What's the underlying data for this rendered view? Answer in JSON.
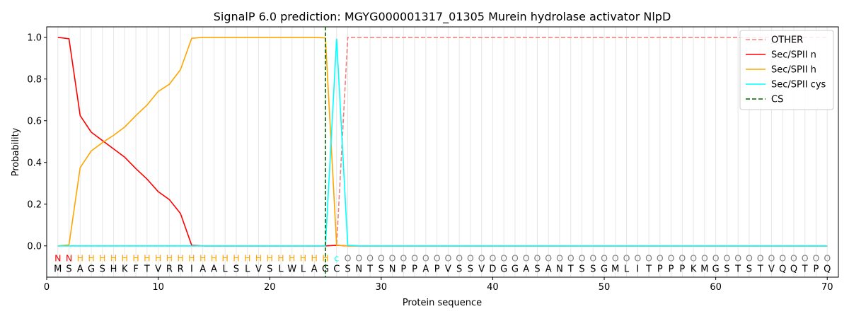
{
  "chart_data": {
    "type": "line",
    "title": "SignalP 6.0 prediction: MGYG000001317_01305 Murein hydrolase activator NlpD",
    "xlabel": "Protein sequence",
    "ylabel": "Probability",
    "xlim": [
      0,
      71
    ],
    "ylim": [
      -0.15,
      1.05
    ],
    "xticks": [
      0,
      10,
      20,
      30,
      40,
      50,
      60,
      70
    ],
    "yticks": [
      0.0,
      0.2,
      0.4,
      0.6,
      0.8,
      1.0
    ],
    "legend_position": "top-right",
    "sequence": [
      "M",
      "S",
      "A",
      "G",
      "S",
      "H",
      "K",
      "F",
      "T",
      "V",
      "R",
      "R",
      "I",
      "A",
      "A",
      "L",
      "S",
      "L",
      "V",
      "S",
      "L",
      "W",
      "L",
      "A",
      "G",
      "C",
      "S",
      "N",
      "T",
      "S",
      "N",
      "P",
      "P",
      "A",
      "P",
      "V",
      "S",
      "S",
      "V",
      "D",
      "G",
      "G",
      "A",
      "S",
      "A",
      "N",
      "T",
      "S",
      "S",
      "G",
      "M",
      "L",
      "I",
      "T",
      "P",
      "P",
      "P",
      "K",
      "M",
      "G",
      "S",
      "T",
      "S",
      "T",
      "V",
      "Q",
      "Q",
      "T",
      "P",
      "Q"
    ],
    "labels": [
      "N",
      "N",
      "H",
      "H",
      "H",
      "H",
      "H",
      "H",
      "H",
      "H",
      "H",
      "H",
      "H",
      "H",
      "H",
      "H",
      "H",
      "H",
      "H",
      "H",
      "H",
      "H",
      "H",
      "H",
      "H",
      "c",
      "O",
      "O",
      "O",
      "O",
      "O",
      "O",
      "O",
      "O",
      "O",
      "O",
      "O",
      "O",
      "O",
      "O",
      "O",
      "O",
      "O",
      "O",
      "O",
      "O",
      "O",
      "O",
      "O",
      "O",
      "O",
      "O",
      "O",
      "O",
      "O",
      "O",
      "O",
      "O",
      "O",
      "O",
      "O",
      "O",
      "O",
      "O",
      "O",
      "O",
      "O",
      "O",
      "O",
      "O"
    ],
    "label_colors": {
      "N": "#ff0000",
      "H": "#ffa500",
      "c": "#00ffff",
      "O": "#808080"
    },
    "series": [
      {
        "name": "OTHER",
        "color": "#f08080",
        "dash": "dashed",
        "values": [
          0,
          0,
          0,
          0,
          0,
          0,
          0,
          0,
          0,
          0,
          0,
          0,
          0,
          0,
          0,
          0,
          0,
          0,
          0,
          0,
          0,
          0,
          0,
          0,
          0,
          0.003,
          1.0,
          1.0,
          1.0,
          1.0,
          1.0,
          1.0,
          1.0,
          1.0,
          1.0,
          1.0,
          1.0,
          1.0,
          1.0,
          1.0,
          1.0,
          1.0,
          1.0,
          1.0,
          1.0,
          1.0,
          1.0,
          1.0,
          1.0,
          1.0,
          1.0,
          1.0,
          1.0,
          1.0,
          1.0,
          1.0,
          1.0,
          1.0,
          1.0,
          1.0,
          1.0,
          1.0,
          1.0,
          1.0,
          1.0,
          1.0,
          1.0,
          1.0,
          1.0,
          1.0
        ]
      },
      {
        "name": "Sec/SPII n",
        "color": "#ff0000",
        "dash": "solid",
        "values": [
          1.0,
          0.993,
          0.625,
          0.545,
          0.505,
          0.465,
          0.425,
          0.37,
          0.32,
          0.26,
          0.222,
          0.155,
          0.003,
          0,
          0,
          0,
          0,
          0,
          0,
          0,
          0,
          0,
          0,
          0,
          0,
          0.003,
          0,
          0,
          0,
          0,
          0,
          0,
          0,
          0,
          0,
          0,
          0,
          0,
          0,
          0,
          0,
          0,
          0,
          0,
          0,
          0,
          0,
          0,
          0,
          0,
          0,
          0,
          0,
          0,
          0,
          0,
          0,
          0,
          0,
          0,
          0,
          0,
          0,
          0,
          0,
          0,
          0,
          0,
          0,
          0
        ]
      },
      {
        "name": "Sec/SPII h",
        "color": "#ffa500",
        "dash": "solid",
        "values": [
          0,
          0.005,
          0.375,
          0.455,
          0.495,
          0.53,
          0.57,
          0.625,
          0.675,
          0.74,
          0.775,
          0.845,
          0.995,
          1.0,
          1.0,
          1.0,
          1.0,
          1.0,
          1.0,
          1.0,
          1.0,
          1.0,
          1.0,
          1.0,
          0.997,
          0.003,
          0,
          0,
          0,
          0,
          0,
          0,
          0,
          0,
          0,
          0,
          0,
          0,
          0,
          0,
          0,
          0,
          0,
          0,
          0,
          0,
          0,
          0,
          0,
          0,
          0,
          0,
          0,
          0,
          0,
          0,
          0,
          0,
          0,
          0,
          0,
          0,
          0,
          0,
          0,
          0,
          0,
          0,
          0,
          0
        ]
      },
      {
        "name": "Sec/SPII cys",
        "color": "#00ffff",
        "dash": "solid",
        "values": [
          0,
          0,
          0,
          0,
          0,
          0,
          0,
          0,
          0,
          0,
          0,
          0,
          0,
          0,
          0,
          0,
          0,
          0,
          0,
          0,
          0,
          0,
          0,
          0,
          0,
          0.993,
          0.003,
          0,
          0,
          0,
          0,
          0,
          0,
          0,
          0,
          0,
          0,
          0,
          0,
          0,
          0,
          0,
          0,
          0,
          0,
          0,
          0,
          0,
          0,
          0,
          0,
          0,
          0,
          0,
          0,
          0,
          0,
          0,
          0,
          0,
          0,
          0,
          0,
          0,
          0,
          0,
          0,
          0,
          0,
          0
        ]
      },
      {
        "name": "CS",
        "color": "#006400",
        "dash": "dashed",
        "vline": 25
      }
    ]
  }
}
